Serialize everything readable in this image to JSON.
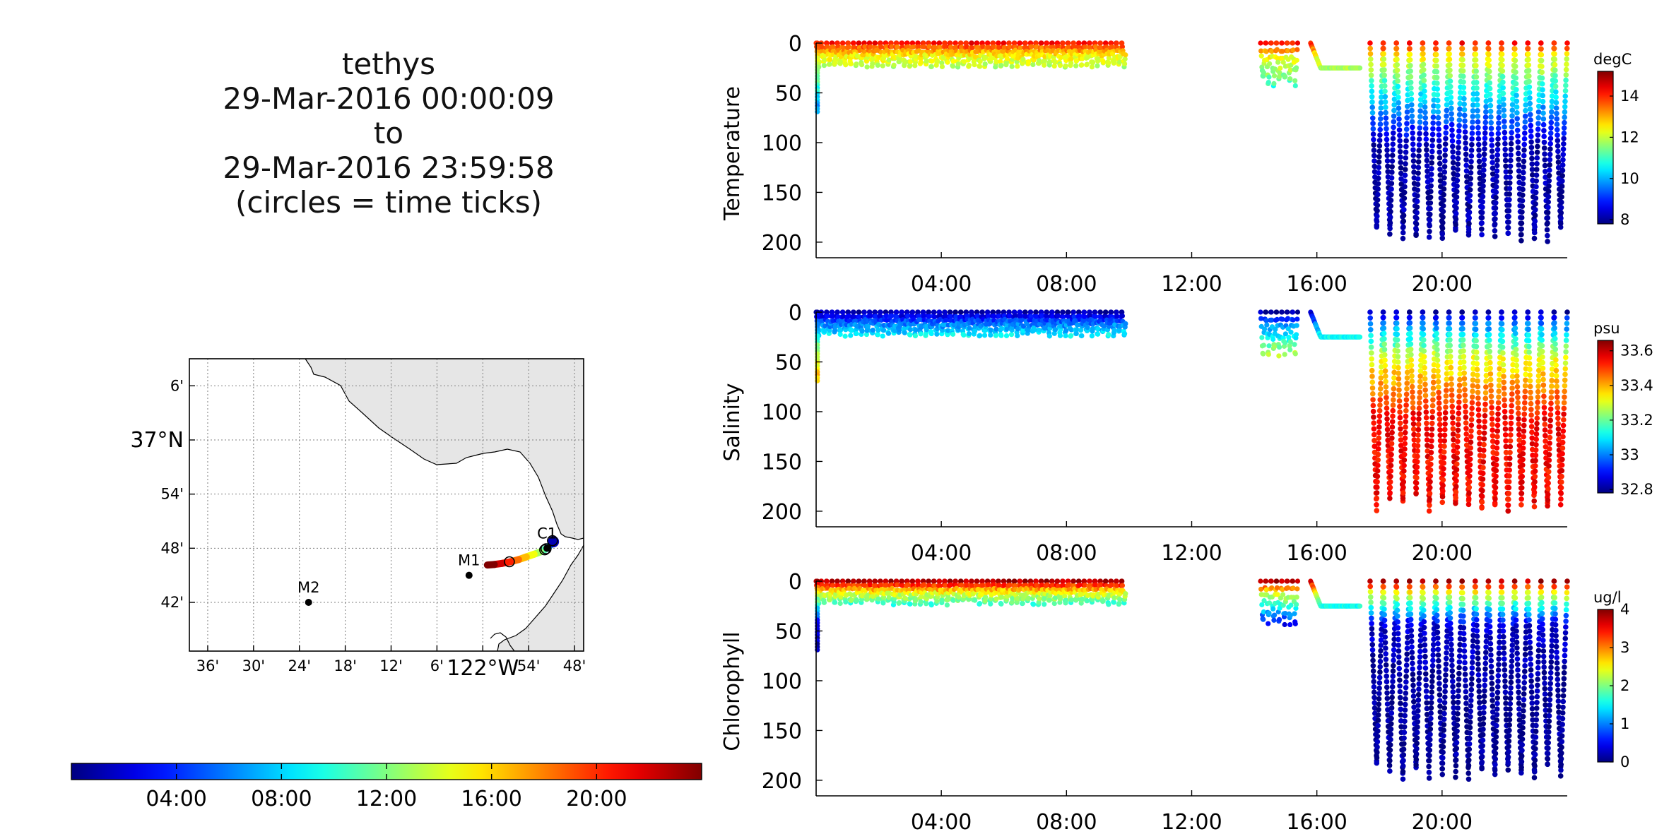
{
  "title": {
    "line1": "tethys",
    "line2": "29-Mar-2016 00:00:09",
    "line3": "to",
    "line4": "29-Mar-2016 23:59:58",
    "line5": "(circles = time ticks)"
  },
  "colors": {
    "land": "#e6e6e6",
    "axis": "#000000",
    "grid": "#7f7f7f",
    "colormap": "jet"
  },
  "map": {
    "lat_labels": [
      "6'",
      "37°N",
      "54'",
      "48'",
      "42'"
    ],
    "lon_labels": [
      "36'",
      "30'",
      "24'",
      "18'",
      "12'",
      "6'",
      "122°W",
      "54'",
      "48'"
    ],
    "moorings": [
      {
        "name": "M2",
        "lon": -122.38,
        "lat": 36.7
      },
      {
        "name": "M1",
        "lon": -122.03,
        "lat": 36.75
      },
      {
        "name": "C1",
        "lon": -121.86,
        "lat": 36.8
      }
    ],
    "track_time_ticks": 4
  },
  "time_colorbar": {
    "tick_labels": [
      "04:00",
      "08:00",
      "12:00",
      "16:00",
      "20:00"
    ]
  },
  "chart_data": [
    {
      "type": "scatter",
      "ylabel": "Temperature",
      "units": "degC",
      "xlabel": "",
      "x_tick_labels": [
        "04:00",
        "08:00",
        "12:00",
        "16:00",
        "20:00"
      ],
      "y_tick_labels": [
        "0",
        "50",
        "100",
        "150",
        "200"
      ],
      "ylim": [
        210,
        0
      ],
      "xlim_hours": [
        0,
        24
      ],
      "colorbar": {
        "min": 7.8,
        "max": 15.2,
        "ticks": [
          "8",
          "10",
          "12",
          "14"
        ]
      },
      "surface_value": 14.2,
      "near_surface_value": 12.5,
      "bottom_value": 8.1,
      "mid_profile_value": 10.8,
      "survey_segments": [
        {
          "start_hour": 0.0,
          "end_hour": 9.9,
          "type": "shallow_yo",
          "max_depth": 22
        },
        {
          "start_hour": 14.2,
          "end_hour": 15.4,
          "type": "shallow_yo",
          "max_depth": 40
        },
        {
          "start_hour": 15.8,
          "end_hour": 17.4,
          "type": "transit",
          "depth": 25
        },
        {
          "start_hour": 17.7,
          "end_hour": 24.0,
          "type": "deep_yo",
          "max_depth": 200
        }
      ]
    },
    {
      "type": "scatter",
      "ylabel": "Salinity",
      "units": "psu",
      "xlabel": "",
      "x_tick_labels": [
        "04:00",
        "08:00",
        "12:00",
        "16:00",
        "20:00"
      ],
      "y_tick_labels": [
        "0",
        "50",
        "100",
        "150",
        "200"
      ],
      "ylim": [
        210,
        0
      ],
      "xlim_hours": [
        0,
        24
      ],
      "colorbar": {
        "min": 32.78,
        "max": 33.66,
        "ticks": [
          "32.8",
          "33",
          "33.2",
          "33.4",
          "33.6"
        ]
      },
      "surface_value": 32.82,
      "near_surface_value": 33.0,
      "bottom_value": 33.55,
      "mid_profile_value": 33.3,
      "survey_segments": [
        {
          "start_hour": 0.0,
          "end_hour": 9.9,
          "type": "shallow_yo",
          "max_depth": 22
        },
        {
          "start_hour": 14.2,
          "end_hour": 15.4,
          "type": "shallow_yo",
          "max_depth": 40
        },
        {
          "start_hour": 15.8,
          "end_hour": 17.4,
          "type": "transit",
          "depth": 25
        },
        {
          "start_hour": 17.7,
          "end_hour": 24.0,
          "type": "deep_yo",
          "max_depth": 200
        }
      ]
    },
    {
      "type": "scatter",
      "ylabel": "Chlorophyll",
      "units": "ug/l",
      "xlabel": "",
      "x_tick_labels": [
        "04:00",
        "08:00",
        "12:00",
        "16:00",
        "20:00"
      ],
      "y_tick_labels": [
        "0",
        "50",
        "100",
        "150",
        "200"
      ],
      "ylim": [
        210,
        0
      ],
      "xlim_hours": [
        0,
        24
      ],
      "colorbar": {
        "min": 0,
        "max": 4.0,
        "ticks": [
          "0",
          "1",
          "2",
          "3",
          "4"
        ]
      },
      "surface_value": 3.8,
      "near_surface_value": 2.4,
      "bottom_value": 0.1,
      "mid_profile_value": 0.3,
      "survey_segments": [
        {
          "start_hour": 0.0,
          "end_hour": 9.9,
          "type": "shallow_yo",
          "max_depth": 22
        },
        {
          "start_hour": 14.2,
          "end_hour": 15.4,
          "type": "shallow_yo",
          "max_depth": 40
        },
        {
          "start_hour": 15.8,
          "end_hour": 17.4,
          "type": "transit",
          "depth": 25
        },
        {
          "start_hour": 17.7,
          "end_hour": 24.0,
          "type": "deep_yo",
          "max_depth": 200
        }
      ]
    }
  ]
}
